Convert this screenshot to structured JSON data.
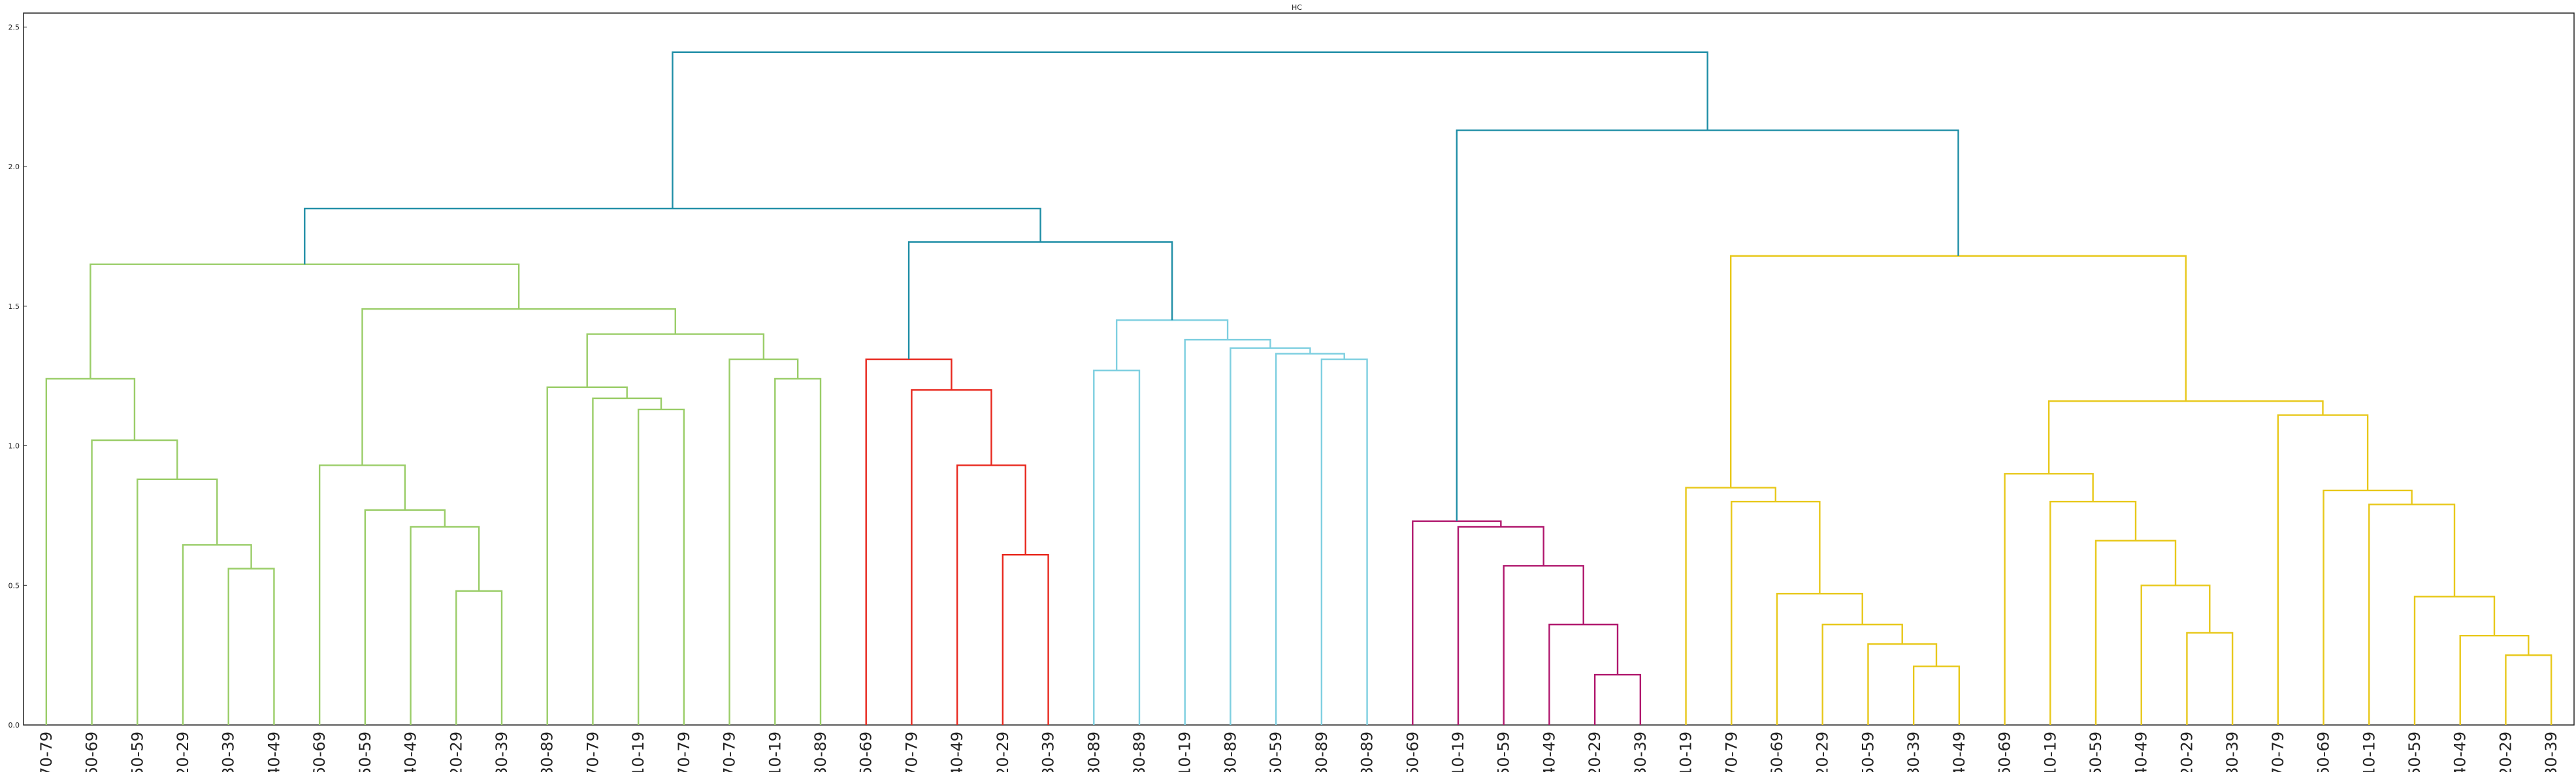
{
  "chart_data": {
    "type": "dendrogram",
    "title": "HC",
    "ylim": [
      0,
      2.55
    ],
    "yticks": [
      "0.0",
      "0.5",
      "1.0",
      "1.5",
      "2.0",
      "2.5"
    ],
    "ytick_values": [
      0,
      0.5,
      1.0,
      1.5,
      2.0,
      2.5
    ],
    "grid": false,
    "leaves": [
      "70-79",
      "60-69",
      "50-59",
      "20-29",
      "30-39",
      "40-49",
      "60-69",
      "50-59",
      "40-49",
      "20-29",
      "30-39",
      "80-89",
      "70-79",
      "10-19",
      "70-79",
      "70-79",
      "10-19",
      "80-89",
      "60-69",
      "70-79",
      "40-49",
      "20-29",
      "30-39",
      "80-89",
      "80-89",
      "10-19",
      "80-89",
      "50-59",
      "80-89",
      "80-89",
      "60-69",
      "10-19",
      "50-59",
      "40-49",
      "20-29",
      "30-39",
      "10-19",
      "70-79",
      "60-69",
      "20-29",
      "50-59",
      "30-39",
      "40-49",
      "60-69",
      "10-19",
      "50-59",
      "40-49",
      "20-29",
      "30-39",
      "70-79",
      "60-69",
      "10-19",
      "50-59",
      "40-49",
      "20-29",
      "30-39"
    ],
    "colors": {
      "green": "#9ACD68",
      "red": "#E8281E",
      "cyan": "#7ECFE0",
      "magenta": "#B0176D",
      "yellow": "#E8C81A",
      "blue": "#1F8EA6"
    },
    "links": [
      [
        4,
        5,
        0.56,
        "green"
      ],
      [
        3,
        "a",
        0.645,
        "green"
      ],
      [
        2,
        "b",
        0.88,
        "green"
      ],
      [
        1,
        "c",
        1.02,
        "green"
      ],
      [
        0,
        "d",
        1.24,
        "green"
      ],
      [
        9,
        10,
        0.48,
        "green"
      ],
      [
        8,
        "f",
        0.71,
        "green"
      ],
      [
        7,
        "g",
        0.77,
        "green"
      ],
      [
        6,
        "h",
        0.93,
        "green"
      ],
      [
        13,
        14,
        1.13,
        "green"
      ],
      [
        12,
        "j",
        1.17,
        "green"
      ],
      [
        11,
        "k",
        1.21,
        "green"
      ],
      [
        16,
        17,
        1.24,
        "green"
      ],
      [
        15,
        "m",
        1.31,
        "green"
      ],
      [
        "l",
        "n",
        1.4,
        "green"
      ],
      [
        "i",
        "o",
        1.49,
        "green"
      ],
      [
        "e",
        "p",
        1.65,
        "green"
      ],
      [
        21,
        22,
        0.61,
        "red"
      ],
      [
        20,
        "r",
        0.93,
        "red"
      ],
      [
        19,
        "s",
        1.2,
        "red"
      ],
      [
        18,
        "t",
        1.31,
        "red"
      ],
      [
        23,
        24,
        1.27,
        "cyan"
      ],
      [
        28,
        29,
        1.31,
        "cyan"
      ],
      [
        27,
        "w",
        1.33,
        "cyan"
      ],
      [
        26,
        "x",
        1.35,
        "cyan"
      ],
      [
        25,
        "y",
        1.38,
        "cyan"
      ],
      [
        "v",
        "z",
        1.45,
        "cyan"
      ],
      [
        "u",
        "aa",
        1.73,
        "blue"
      ],
      [
        "q",
        "ab",
        1.85,
        "blue"
      ],
      [
        34,
        35,
        0.18,
        "magenta"
      ],
      [
        33,
        "ad",
        0.36,
        "magenta"
      ],
      [
        32,
        "ae",
        0.57,
        "magenta"
      ],
      [
        31,
        "af",
        0.71,
        "magenta"
      ],
      [
        30,
        "ag",
        0.73,
        "magenta"
      ],
      [
        41,
        42,
        0.21,
        "yellow"
      ],
      [
        40,
        "ai",
        0.29,
        "yellow"
      ],
      [
        39,
        "aj",
        0.36,
        "yellow"
      ],
      [
        38,
        "ak",
        0.47,
        "yellow"
      ],
      [
        37,
        "al",
        0.8,
        "yellow"
      ],
      [
        36,
        "am",
        0.85,
        "yellow"
      ],
      [
        47,
        48,
        0.33,
        "yellow"
      ],
      [
        46,
        "ao",
        0.5,
        "yellow"
      ],
      [
        45,
        "ap",
        0.66,
        "yellow"
      ],
      [
        44,
        "aq",
        0.8,
        "yellow"
      ],
      [
        43,
        "ar",
        0.9,
        "yellow"
      ],
      [
        54,
        55,
        0.25,
        "yellow"
      ],
      [
        53,
        "at",
        0.32,
        "yellow"
      ],
      [
        52,
        "au",
        0.46,
        "yellow"
      ],
      [
        51,
        "av",
        0.79,
        "yellow"
      ],
      [
        50,
        "aw",
        0.84,
        "yellow"
      ],
      [
        49,
        "ax",
        1.11,
        "yellow"
      ],
      [
        "as",
        "ay",
        1.16,
        "yellow"
      ],
      [
        "an",
        "az",
        1.68,
        "yellow"
      ],
      [
        "ah",
        "ba",
        2.13,
        "blue"
      ],
      [
        "ac",
        "bb",
        2.41,
        "blue"
      ]
    ],
    "link_ids": [
      "a",
      "b",
      "c",
      "d",
      "e",
      "f",
      "g",
      "h",
      "i",
      "j",
      "k",
      "l",
      "m",
      "n",
      "o",
      "p",
      "q",
      "r",
      "s",
      "t",
      "u",
      "v",
      "w",
      "x",
      "y",
      "z",
      "aa",
      "ab",
      "ac",
      "ad",
      "ae",
      "af",
      "ag",
      "ah",
      "ai",
      "aj",
      "ak",
      "al",
      "am",
      "an",
      "ao",
      "ap",
      "aq",
      "ar",
      "as",
      "at",
      "au",
      "av",
      "aw",
      "ax",
      "ay",
      "az",
      "ba",
      "bb",
      "bc"
    ]
  }
}
